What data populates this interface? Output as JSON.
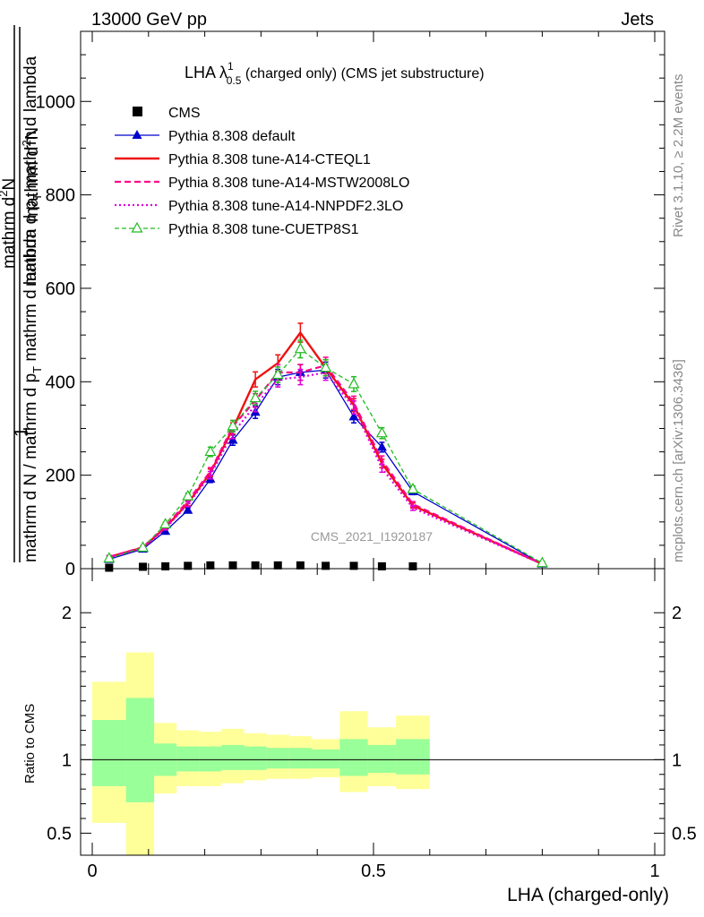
{
  "header": {
    "left": "13000 GeV pp",
    "right": "Jets"
  },
  "title": {
    "main": "LHA λ",
    "sup": "1",
    "sub": "0.5",
    "tail": " (charged only) (CMS jet substructure)"
  },
  "ylabel_lines": [
    "mathrm d",
    "2",
    "N",
    "mathrm d p",
    "T",
    " mathrm d lambda",
    "1",
    "mathrm d N / mathrm d p",
    "T"
  ],
  "ylabel_text": {
    "num_top": "mathrm d",
    "num_sup": "2",
    "num_tail": "N",
    "num_mid": "mathrm d p",
    "num_mid_sub": "T",
    "num_end": " mathrm d lambda",
    "one": "1",
    "den": "mathrm d N / mathrm d p",
    "den_sub": "T"
  },
  "ratio_ylabel": "Ratio to CMS",
  "xlabel": "LHA (charged-only)",
  "right_text_top": "Rivet 3.1.10, ≥ 2.2M events",
  "right_text_bottom": "mcplots.cern.ch [arXiv:1306.3436]",
  "watermark": "CMS_2021_I1920187",
  "colors": {
    "cms": "#000000",
    "default": "#0000cc",
    "cteql1": "#ee1111",
    "mstw": "#ff0088",
    "nnpdf": "#dd00dd",
    "cuetp8s1": "#22bb22",
    "band_outer": "#ffff99",
    "band_inner": "#99ff99"
  },
  "chart_data": {
    "type": "line",
    "x": [
      0.03,
      0.09,
      0.13,
      0.17,
      0.21,
      0.25,
      0.29,
      0.33,
      0.37,
      0.415,
      0.465,
      0.515,
      0.57,
      0.8
    ],
    "ylim": [
      0,
      1150
    ],
    "xlim": [
      -0.02,
      1.0
    ],
    "y_ticks": [
      0,
      200,
      400,
      600,
      800,
      1000
    ],
    "x_ticks": [
      0,
      0.5,
      1
    ],
    "x_tick_labels": [
      "0",
      "0.5",
      "1"
    ],
    "series": [
      {
        "name": "CMS",
        "style": "marker-square",
        "values": [
          2,
          4,
          5,
          6,
          7,
          7,
          7,
          7,
          7,
          6,
          6,
          5,
          5,
          null
        ]
      },
      {
        "name": "Pythia 8.308 default",
        "style": "solid-triangle",
        "values": [
          20,
          42,
          80,
          125,
          192,
          275,
          335,
          410,
          420,
          425,
          325,
          260,
          165,
          10
        ]
      },
      {
        "name": "Pythia 8.308 tune-A14-CTEQL1",
        "style": "solid-thick",
        "values": [
          25,
          45,
          88,
          140,
          205,
          300,
          405,
          440,
          505,
          430,
          350,
          225,
          135,
          10
        ]
      },
      {
        "name": "Pythia 8.308 tune-A14-MSTW2008LO",
        "style": "dashed",
        "values": [
          25,
          46,
          90,
          145,
          208,
          305,
          360,
          420,
          420,
          435,
          355,
          232,
          138,
          10
        ]
      },
      {
        "name": "Pythia 8.308 tune-A14-NNPDF2.3LO",
        "style": "dotted",
        "values": [
          24,
          44,
          86,
          138,
          200,
          290,
          350,
          405,
          410,
          420,
          345,
          215,
          130,
          10
        ]
      },
      {
        "name": "Pythia 8.308 tune-CUETP8S1",
        "style": "dashed-triangle-open",
        "values": [
          22,
          45,
          95,
          155,
          250,
          305,
          365,
          415,
          470,
          430,
          395,
          290,
          170,
          12
        ]
      }
    ],
    "ratio": {
      "ylabel": "Ratio to CMS",
      "ylim": [
        0.35,
        2.3
      ],
      "ticks": [
        0.5,
        1,
        2
      ],
      "tick_labels": [
        "0.5",
        "1",
        "2"
      ],
      "bin_edges": [
        0.0,
        0.06,
        0.11,
        0.15,
        0.19,
        0.23,
        0.27,
        0.31,
        0.35,
        0.39,
        0.44,
        0.49,
        0.54,
        0.6,
        1.0
      ],
      "band_outer": [
        [
          0.57,
          1.53
        ],
        [
          0.0,
          1.73
        ],
        [
          0.77,
          1.25
        ],
        [
          0.82,
          1.2
        ],
        [
          0.82,
          1.19
        ],
        [
          0.84,
          1.21
        ],
        [
          0.86,
          1.18
        ],
        [
          0.87,
          1.17
        ],
        [
          0.87,
          1.16
        ],
        [
          0.88,
          1.14
        ],
        [
          0.78,
          1.33
        ],
        [
          0.82,
          1.22
        ],
        [
          0.8,
          1.3
        ]
      ],
      "band_inner": [
        [
          0.82,
          1.27
        ],
        [
          0.71,
          1.42
        ],
        [
          0.89,
          1.11
        ],
        [
          0.92,
          1.09
        ],
        [
          0.92,
          1.09
        ],
        [
          0.93,
          1.1
        ],
        [
          0.93,
          1.09
        ],
        [
          0.94,
          1.08
        ],
        [
          0.94,
          1.08
        ],
        [
          0.94,
          1.07
        ],
        [
          0.89,
          1.14
        ],
        [
          0.91,
          1.1
        ],
        [
          0.9,
          1.14
        ]
      ]
    }
  }
}
